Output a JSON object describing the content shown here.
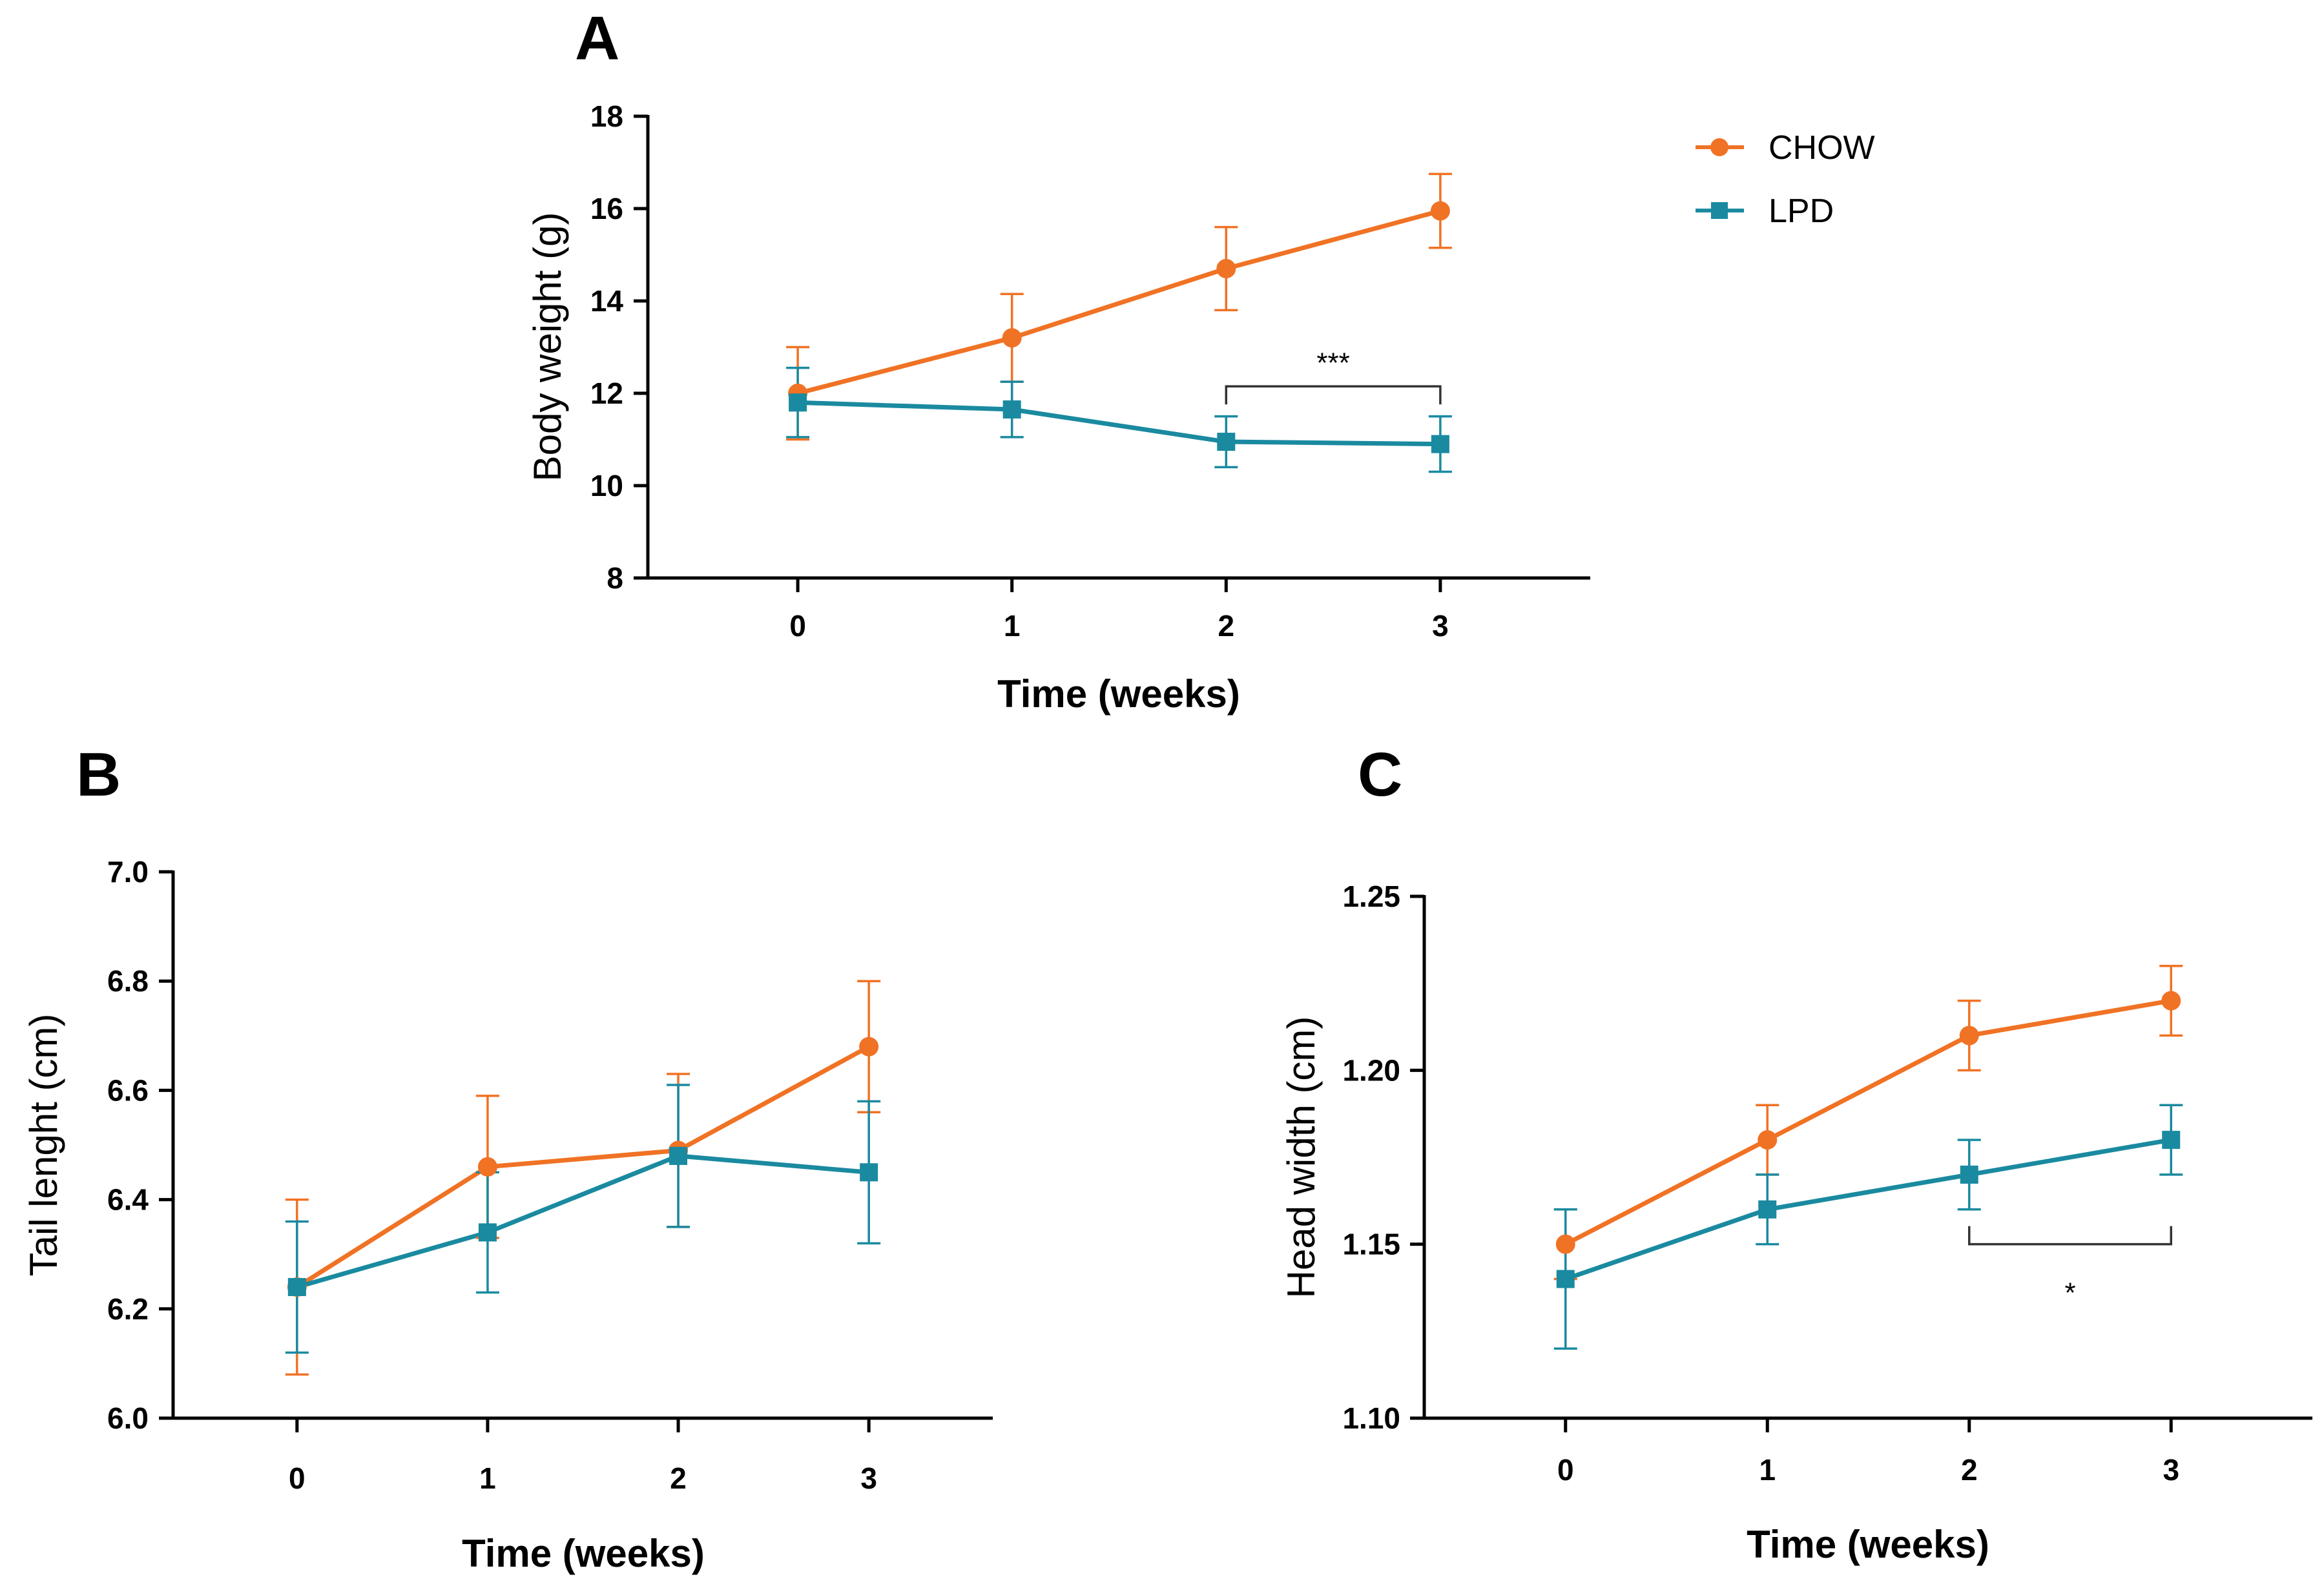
{
  "colors": {
    "chow": "#F07224",
    "lpd": "#1A8AA0",
    "axis": "#000000"
  },
  "legend": [
    {
      "name": "CHOW",
      "marker": "circle"
    },
    {
      "name": "LPD",
      "marker": "square"
    }
  ],
  "chart_data": [
    {
      "panel": "A",
      "type": "line",
      "x": [
        0,
        1,
        2,
        3
      ],
      "xlabel": "Time (weeks)",
      "ylabel": "Body weight (g)",
      "xlim": [
        -0.7,
        3.7
      ],
      "ylim": [
        8,
        18
      ],
      "yticks": [
        8,
        10,
        12,
        14,
        16,
        18
      ],
      "ytick_labels": [
        "8",
        "10",
        "12",
        "14",
        "16",
        "18"
      ],
      "xtick_labels": [
        "0",
        "1",
        "2",
        "3"
      ],
      "series": [
        {
          "name": "CHOW",
          "marker": "circle",
          "values": [
            12.0,
            13.2,
            14.7,
            15.95
          ],
          "errors": [
            1.0,
            0.95,
            0.9,
            0.8
          ]
        },
        {
          "name": "LPD",
          "marker": "square",
          "values": [
            11.8,
            11.65,
            10.95,
            10.9
          ],
          "errors": [
            0.75,
            0.6,
            0.55,
            0.6
          ]
        }
      ],
      "significance": {
        "label": "***",
        "from_x": 2,
        "to_x": 3,
        "y": 12.15,
        "bracket": "down"
      }
    },
    {
      "panel": "B",
      "type": "line",
      "x": [
        0,
        1,
        2,
        3
      ],
      "xlabel": "Time (weeks)",
      "ylabel": "Tail lenght (cm)",
      "xlim": [
        -0.65,
        3.65
      ],
      "ylim": [
        6.0,
        7.0
      ],
      "yticks": [
        6.0,
        6.2,
        6.4,
        6.6,
        6.8,
        7.0
      ],
      "ytick_labels": [
        "6.0",
        "6.2",
        "6.4",
        "6.6",
        "6.8",
        "7.0"
      ],
      "xtick_labels": [
        "0",
        "1",
        "2",
        "3"
      ],
      "series": [
        {
          "name": "CHOW",
          "marker": "circle",
          "values": [
            6.24,
            6.46,
            6.49,
            6.68
          ],
          "errors": [
            0.16,
            0.13,
            0.14,
            0.12
          ]
        },
        {
          "name": "LPD",
          "marker": "square",
          "values": [
            6.24,
            6.34,
            6.48,
            6.45
          ],
          "errors": [
            0.12,
            0.11,
            0.13,
            0.13
          ]
        }
      ]
    },
    {
      "panel": "C",
      "type": "line",
      "x": [
        0,
        1,
        2,
        3
      ],
      "xlabel": "Time (weeks)",
      "ylabel": "Head width (cm)",
      "xlim": [
        -0.7,
        3.7
      ],
      "ylim": [
        1.1,
        1.25
      ],
      "yticks": [
        1.1,
        1.15,
        1.2,
        1.25
      ],
      "ytick_labels": [
        "1.10",
        "1.15",
        "1.20",
        "1.25"
      ],
      "xtick_labels": [
        "0",
        "1",
        "2",
        "3"
      ],
      "series": [
        {
          "name": "CHOW",
          "marker": "circle",
          "values": [
            1.15,
            1.18,
            1.21,
            1.22
          ],
          "errors": [
            0.01,
            0.01,
            0.01,
            0.01
          ]
        },
        {
          "name": "LPD",
          "marker": "square",
          "values": [
            1.14,
            1.16,
            1.17,
            1.18
          ],
          "errors": [
            0.02,
            0.01,
            0.01,
            0.01
          ]
        }
      ],
      "significance": {
        "label": "*",
        "from_x": 2,
        "to_x": 3,
        "y": 1.15,
        "bracket": "up"
      }
    }
  ]
}
